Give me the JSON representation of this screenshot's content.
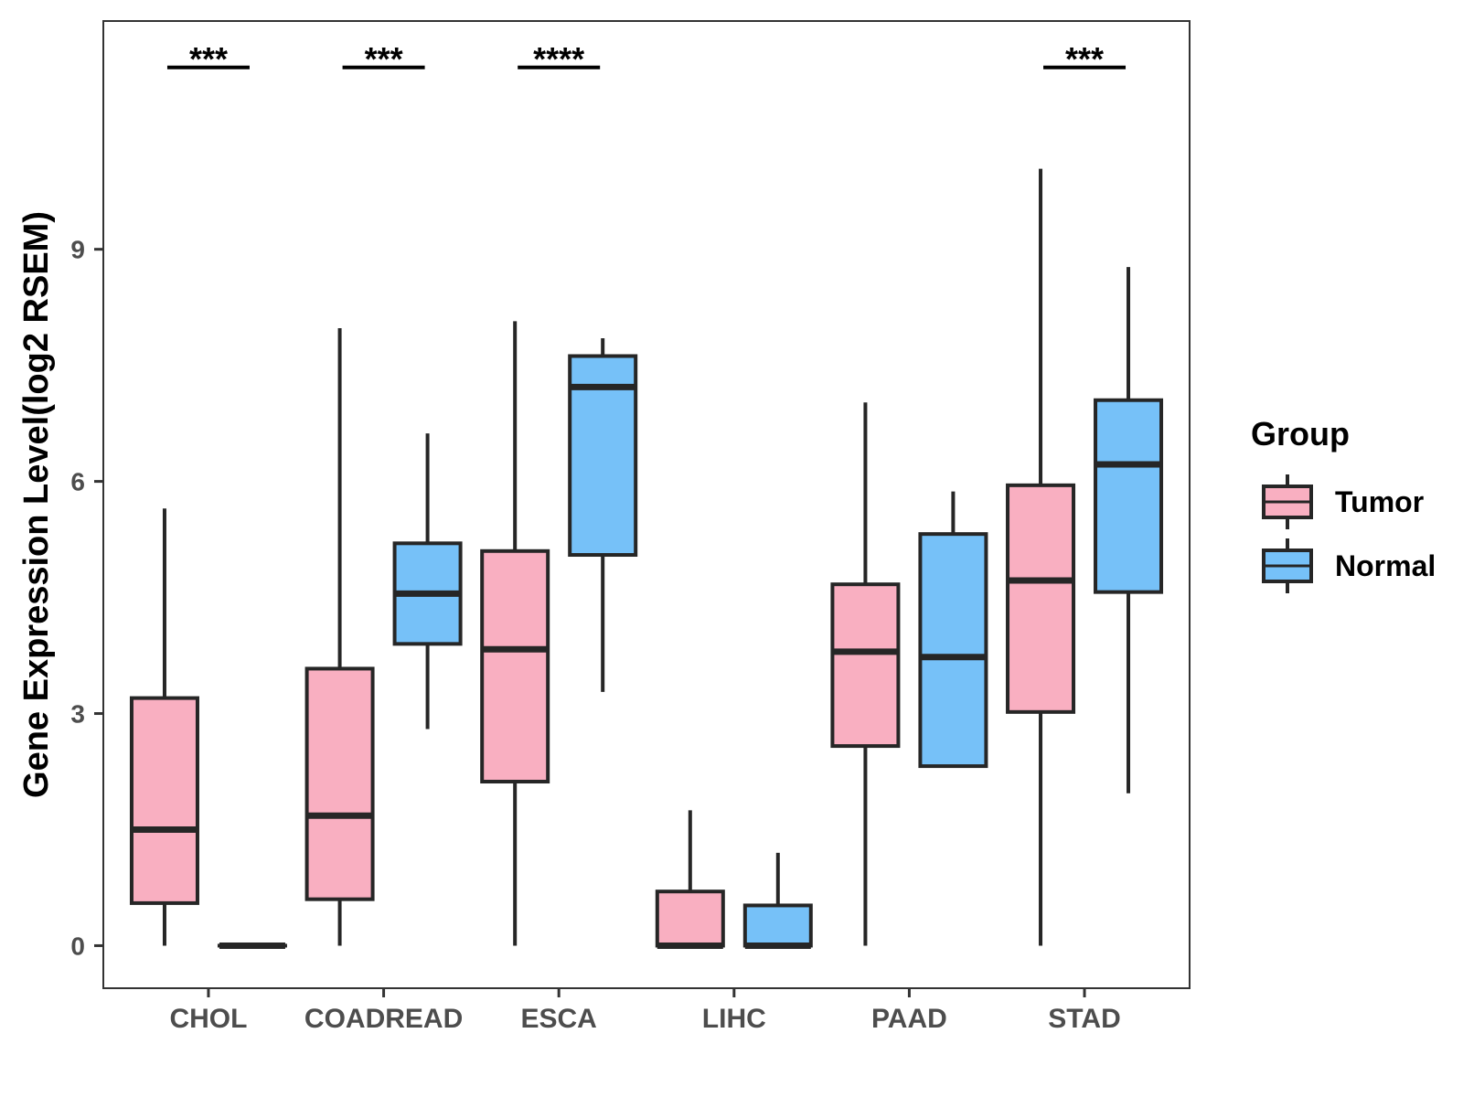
{
  "chart_data": {
    "type": "boxplot",
    "title": "",
    "xlabel": "",
    "ylabel": "Gene Expression Level(log2 RSEM)",
    "ylim": [
      -0.55,
      11.95
    ],
    "yticks": [
      0,
      3,
      6,
      9
    ],
    "grid": false,
    "legend": {
      "title": "Group",
      "position": "right"
    },
    "categories": [
      "CHOL",
      "COADREAD",
      "ESCA",
      "LIHC",
      "PAAD",
      "STAD"
    ],
    "series": [
      {
        "name": "Tumor",
        "color": "#F9AFC1",
        "boxes": [
          {
            "min": 0.0,
            "q1": 0.55,
            "median": 1.5,
            "q3": 3.2,
            "max": 5.65
          },
          {
            "min": 0.0,
            "q1": 0.6,
            "median": 1.68,
            "q3": 3.58,
            "max": 7.98
          },
          {
            "min": 0.0,
            "q1": 2.12,
            "median": 3.83,
            "q3": 5.1,
            "max": 8.07
          },
          {
            "min": 0.0,
            "q1": 0.0,
            "median": 0.0,
            "q3": 0.7,
            "max": 1.75
          },
          {
            "min": 0.0,
            "q1": 2.58,
            "median": 3.8,
            "q3": 4.67,
            "max": 7.02
          },
          {
            "min": 0.0,
            "q1": 3.02,
            "median": 4.72,
            "q3": 5.95,
            "max": 10.04
          }
        ]
      },
      {
        "name": "Normal",
        "color": "#76C1F8",
        "boxes": [
          {
            "min": 0.0,
            "q1": 0.0,
            "median": 0.0,
            "q3": 0.0,
            "max": 0.0
          },
          {
            "min": 2.8,
            "q1": 3.9,
            "median": 4.55,
            "q3": 5.2,
            "max": 6.62
          },
          {
            "min": 3.28,
            "q1": 5.05,
            "median": 7.22,
            "q3": 7.62,
            "max": 7.85
          },
          {
            "min": 0.0,
            "q1": 0.0,
            "median": 0.0,
            "q3": 0.52,
            "max": 1.2
          },
          {
            "min": 2.32,
            "q1": 2.32,
            "median": 3.73,
            "q3": 5.32,
            "max": 5.87
          },
          {
            "min": 1.97,
            "q1": 4.57,
            "median": 6.22,
            "q3": 7.05,
            "max": 8.77
          }
        ]
      }
    ],
    "significance": [
      {
        "category": "CHOL",
        "label": "***"
      },
      {
        "category": "COADREAD",
        "label": "***"
      },
      {
        "category": "ESCA",
        "label": "****"
      },
      {
        "category": "STAD",
        "label": "***"
      }
    ],
    "significance_y": 11.35
  }
}
